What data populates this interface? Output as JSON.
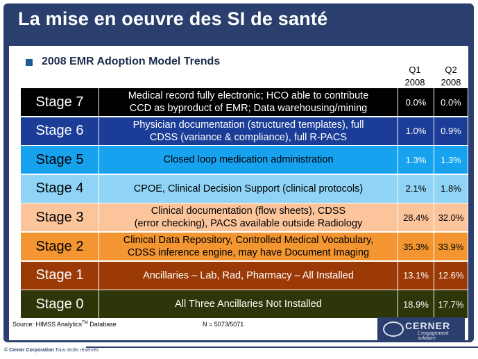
{
  "slide": {
    "title": "La mise en oeuvre des SI de santé",
    "subtitle": "2008 EMR Adoption Model Trends",
    "col_q1": [
      "Q1",
      "2008"
    ],
    "col_q2": [
      "Q2",
      "2008"
    ]
  },
  "stages": [
    {
      "stage": "Stage 7",
      "desc": [
        "Medical record fully electronic; HCO able to contribute",
        "CCD as byproduct of EMR; Data warehousing/mining"
      ],
      "q1": "0.0%",
      "q2": "0.0%",
      "bg": "#000000",
      "fg": "#ffffff",
      "qbg": "#000000",
      "qfg": "#ffffff"
    },
    {
      "stage": "Stage 6",
      "desc": [
        "Physician documentation (structured templates), full",
        "CDSS (variance & compliance), full R-PACS"
      ],
      "q1": "1.0%",
      "q2": "0.9%",
      "bg": "#1c3d97",
      "fg": "#ffffff",
      "qbg": "#1c3d97",
      "qfg": "#ffffff"
    },
    {
      "stage": "Stage 5",
      "desc": [
        "Closed loop medication administration"
      ],
      "q1": "1.3%",
      "q2": "1.3%",
      "bg": "#17a2f0",
      "fg": "#000000",
      "qbg": "#17a2f0",
      "qfg": "#ffffff"
    },
    {
      "stage": "Stage 4",
      "desc": [
        "CPOE, Clinical Decision Support (clinical protocols)"
      ],
      "q1": "2.1%",
      "q2": "1.8%",
      "bg": "#8fd4f6",
      "fg": "#000000",
      "qbg": "#8fd4f6",
      "qfg": "#000000"
    },
    {
      "stage": "Stage 3",
      "desc": [
        "Clinical documentation (flow sheets), CDSS",
        "(error checking), PACS available outside Radiology"
      ],
      "q1": "28.4%",
      "q2": "32.0%",
      "bg": "#fcc49a",
      "fg": "#000000",
      "qbg": "#fcc49a",
      "qfg": "#000000"
    },
    {
      "stage": "Stage 2",
      "desc": [
        "Clinical Data Repository, Controlled Medical Vocabulary,",
        "CDSS inference engine, may have Document Imaging"
      ],
      "q1": "35.3%",
      "q2": "33.9%",
      "bg": "#f39531",
      "fg": "#000000",
      "qbg": "#f39531",
      "qfg": "#000000"
    },
    {
      "stage": "Stage 1",
      "desc": [
        "Ancillaries – Lab, Rad, Pharmacy – All Installed"
      ],
      "q1": "13.1%",
      "q2": "12.6%",
      "bg": "#9b3a07",
      "fg": "#ffffff",
      "qbg": "#9b3a07",
      "qfg": "#ffffff"
    },
    {
      "stage": "Stage 0",
      "desc": [
        "All Three Ancillaries Not Installed"
      ],
      "q1": "18.9%",
      "q2": "17.7%",
      "bg": "#2e3508",
      "fg": "#ffffff",
      "qbg": "#2e3508",
      "qfg": "#ffffff"
    }
  ],
  "footer": {
    "source_prefix": "Source: HIMSS Analytics",
    "source_tm": "TM",
    "source_suffix": " Database",
    "n": "N = 5073/5071",
    "logo_word": "CERNER",
    "logo_tagline": "L'engagement solidaire",
    "copyright_bold": "© Cerner Corporation",
    "copyright_rest": " Tous droits réservés"
  }
}
